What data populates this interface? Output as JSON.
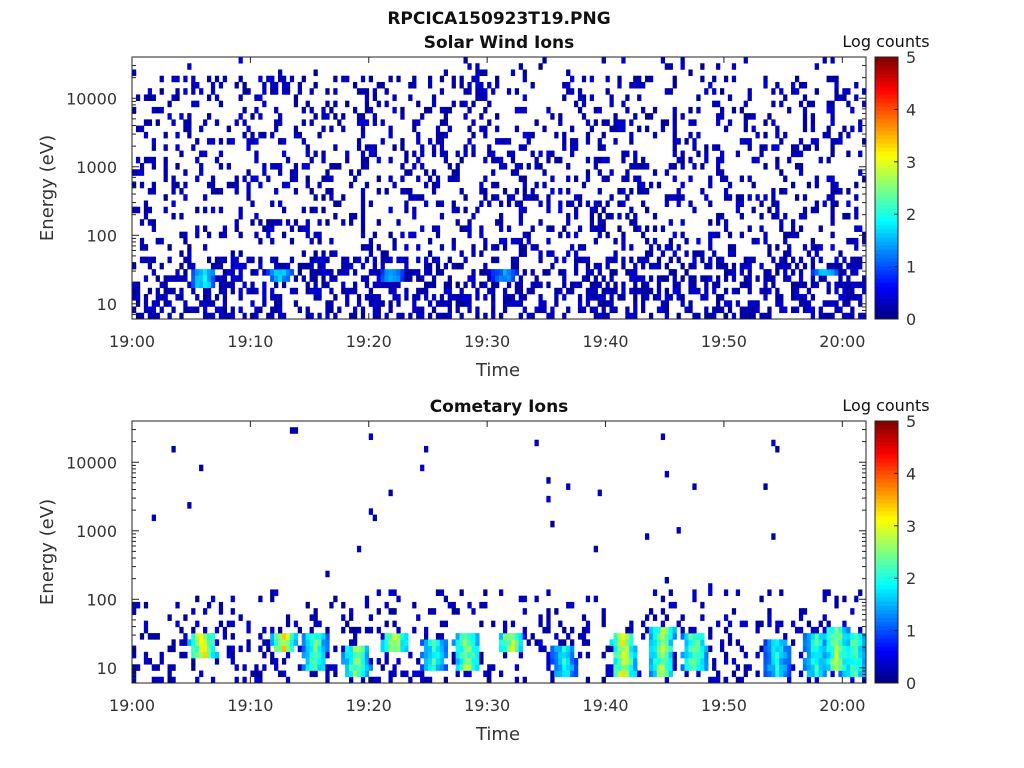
{
  "figure": {
    "filename_title": "RPCICA150923T19.PNG"
  },
  "chart_data": [
    {
      "type": "heatmap",
      "title": "Solar Wind Ions",
      "xlabel": "Time",
      "ylabel": "Energy (eV)",
      "colorbar_label": "Log counts",
      "x_tick_labels": [
        "19:00",
        "19:10",
        "19:20",
        "19:30",
        "19:40",
        "19:50",
        "20:00"
      ],
      "x_range": [
        "19:00",
        "20:02"
      ],
      "y_tick_labels": [
        "10",
        "100",
        "1000",
        "10000"
      ],
      "y_scale": "log",
      "y_range": [
        6,
        40000
      ],
      "colorbar_ticks": [
        "0",
        "1",
        "2",
        "3",
        "4",
        "5"
      ],
      "color_range": [
        0,
        5
      ],
      "colormap": "jet",
      "background": "#ffffff",
      "description_of_data": "Sparse low-count (log counts ~0-0.5) events across all energies 10 eV - 20 keV; denser at 10-40 eV with brief ~2 log-count patches",
      "hotspots": [
        {
          "time_min": 6.0,
          "energy_low": 18,
          "energy_high": 35,
          "log_counts": 2.0
        },
        {
          "time_min": 12.5,
          "energy_low": 20,
          "energy_high": 35,
          "log_counts": 1.8
        },
        {
          "time_min": 22.0,
          "energy_low": 20,
          "energy_high": 35,
          "log_counts": 1.6
        },
        {
          "time_min": 31.5,
          "energy_low": 20,
          "energy_high": 35,
          "log_counts": 1.5
        },
        {
          "time_min": 58.5,
          "energy_low": 25,
          "energy_high": 35,
          "log_counts": 2.0
        }
      ]
    },
    {
      "type": "heatmap",
      "title": "Cometary Ions",
      "xlabel": "Time",
      "ylabel": "Energy (eV)",
      "colorbar_label": "Log counts",
      "x_tick_labels": [
        "19:00",
        "19:10",
        "19:20",
        "19:30",
        "19:40",
        "19:50",
        "20:00"
      ],
      "x_range": [
        "19:00",
        "20:02"
      ],
      "y_tick_labels": [
        "10",
        "100",
        "1000",
        "10000"
      ],
      "y_scale": "log",
      "y_range": [
        6,
        40000
      ],
      "colorbar_ticks": [
        "0",
        "1",
        "2",
        "3",
        "4",
        "5"
      ],
      "color_range": [
        0,
        5
      ],
      "colormap": "jet",
      "background": "#ffffff",
      "description_of_data": "Intense bursts at 6-40 eV recurring every ~3-5 minutes, peaking ~3.3 log counts; sparse scattered counts up to 20 keV",
      "hotspots": [
        {
          "time_min": 6.0,
          "energy_low": 14,
          "energy_high": 35,
          "log_counts": 3.3
        },
        {
          "time_min": 12.8,
          "energy_low": 16,
          "energy_high": 35,
          "log_counts": 3.2
        },
        {
          "time_min": 15.5,
          "energy_low": 10,
          "energy_high": 30,
          "log_counts": 2.4
        },
        {
          "time_min": 19.0,
          "energy_low": 8,
          "energy_high": 20,
          "log_counts": 2.8
        },
        {
          "time_min": 22.2,
          "energy_low": 16,
          "energy_high": 35,
          "log_counts": 3.0
        },
        {
          "time_min": 25.5,
          "energy_low": 10,
          "energy_high": 25,
          "log_counts": 2.2
        },
        {
          "time_min": 28.3,
          "energy_low": 10,
          "energy_high": 30,
          "log_counts": 2.8
        },
        {
          "time_min": 32.0,
          "energy_low": 16,
          "energy_high": 35,
          "log_counts": 3.0
        },
        {
          "time_min": 36.5,
          "energy_low": 8,
          "energy_high": 20,
          "log_counts": 2.0
        },
        {
          "time_min": 41.5,
          "energy_low": 8,
          "energy_high": 30,
          "log_counts": 3.0
        },
        {
          "time_min": 44.8,
          "energy_low": 8,
          "energy_high": 40,
          "log_counts": 2.8
        },
        {
          "time_min": 47.5,
          "energy_low": 10,
          "energy_high": 30,
          "log_counts": 2.6
        },
        {
          "time_min": 54.5,
          "energy_low": 8,
          "energy_high": 25,
          "log_counts": 2.0
        },
        {
          "time_min": 57.8,
          "energy_low": 8,
          "energy_high": 35,
          "log_counts": 2.2
        },
        {
          "time_min": 59.5,
          "energy_low": 10,
          "energy_high": 40,
          "log_counts": 2.8
        },
        {
          "time_min": 61.0,
          "energy_low": 8,
          "energy_high": 30,
          "log_counts": 2.4
        }
      ]
    }
  ]
}
